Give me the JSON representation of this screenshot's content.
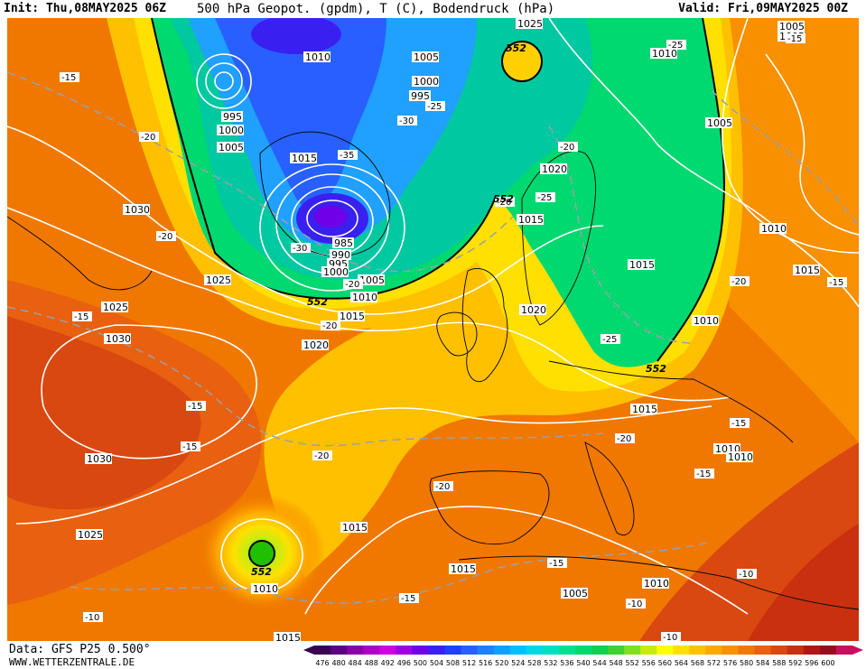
{
  "header": {
    "init": "Init: Thu,08MAY2025 06Z",
    "title": "500 hPa Geopot. (gpdm), T (C), Bodendruck (hPa)",
    "valid": "Valid: Fri,09MAY2025 00Z"
  },
  "footer": {
    "source": "Data: GFS P25 0.500°",
    "website": "WWW.WETTERZENTRALE.DE"
  },
  "colorbar": {
    "ticks": [
      "476",
      "480",
      "484",
      "488",
      "492",
      "496",
      "500",
      "504",
      "508",
      "512",
      "516",
      "520",
      "524",
      "528",
      "532",
      "536",
      "540",
      "544",
      "548",
      "552",
      "556",
      "560",
      "564",
      "568",
      "572",
      "576",
      "580",
      "584",
      "588",
      "592",
      "596",
      "600"
    ],
    "colors": [
      "#3a0050",
      "#5a0080",
      "#8a00a8",
      "#b000c8",
      "#d000e0",
      "#a000e0",
      "#7000e8",
      "#3a20f0",
      "#2040ff",
      "#2860ff",
      "#2080ff",
      "#10a0ff",
      "#00c0ff",
      "#00d8e8",
      "#00e0c0",
      "#00e090",
      "#00d870",
      "#10d050",
      "#40d030",
      "#80e020",
      "#c8ec10",
      "#ffff00",
      "#ffe000",
      "#ffc000",
      "#ffa800",
      "#f89000",
      "#f07800",
      "#e86010",
      "#d84810",
      "#c83010",
      "#b01818",
      "#980c20",
      "#c81060"
    ]
  },
  "pressure_labels": [
    {
      "t": "1025",
      "id": "p1"
    },
    {
      "t": "1005",
      "id": "p2"
    },
    {
      "t": "1010",
      "id": "p3"
    },
    {
      "t": "1005",
      "id": "p4"
    },
    {
      "t": "1000",
      "id": "p5"
    },
    {
      "t": "995",
      "id": "p6"
    },
    {
      "t": "995",
      "id": "p7"
    },
    {
      "t": "1000",
      "id": "p8"
    },
    {
      "t": "1005",
      "id": "p9"
    },
    {
      "t": "1015",
      "id": "p10"
    },
    {
      "t": "1030",
      "id": "p11"
    },
    {
      "t": "985",
      "id": "p12"
    },
    {
      "t": "990",
      "id": "p13"
    },
    {
      "t": "995",
      "id": "p14"
    },
    {
      "t": "1000",
      "id": "p15"
    },
    {
      "t": "1005",
      "id": "p16"
    },
    {
      "t": "1010",
      "id": "p17"
    },
    {
      "t": "1025",
      "id": "p18"
    },
    {
      "t": "1025",
      "id": "p19"
    },
    {
      "t": "1030",
      "id": "p20"
    },
    {
      "t": "1015",
      "id": "p21"
    },
    {
      "t": "1020",
      "id": "p22"
    },
    {
      "t": "1020",
      "id": "p23"
    },
    {
      "t": "1015",
      "id": "p24"
    },
    {
      "t": "1010",
      "id": "p25"
    },
    {
      "t": "1005",
      "id": "p26"
    },
    {
      "t": "1015",
      "id": "p27"
    },
    {
      "t": "1010",
      "id": "p28"
    },
    {
      "t": "1015",
      "id": "p29"
    },
    {
      "t": "1020",
      "id": "p30"
    },
    {
      "t": "1010",
      "id": "p31"
    },
    {
      "t": "1015",
      "id": "p32"
    },
    {
      "t": "1010",
      "id": "p33"
    },
    {
      "t": "1010",
      "id": "p34"
    },
    {
      "t": "1030",
      "id": "p35"
    },
    {
      "t": "1025",
      "id": "p36"
    },
    {
      "t": "1015",
      "id": "p37"
    },
    {
      "t": "1015",
      "id": "p38"
    },
    {
      "t": "1010",
      "id": "p39"
    },
    {
      "t": "1005",
      "id": "p40"
    },
    {
      "t": "1010",
      "id": "p41"
    },
    {
      "t": "1015",
      "id": "p42"
    },
    {
      "t": "1005",
      "id": "p43"
    }
  ],
  "temp_labels": [
    {
      "t": "-15",
      "id": "t1"
    },
    {
      "t": "-20",
      "id": "t2"
    },
    {
      "t": "-30",
      "id": "t3"
    },
    {
      "t": "-35",
      "id": "t4"
    },
    {
      "t": "-25",
      "id": "t5"
    },
    {
      "t": "-30",
      "id": "t6"
    },
    {
      "t": "-20",
      "id": "t7"
    },
    {
      "t": "-25",
      "id": "t8"
    },
    {
      "t": "-20",
      "id": "t9"
    },
    {
      "t": "-25",
      "id": "t10"
    },
    {
      "t": "-20",
      "id": "t11"
    },
    {
      "t": "-15",
      "id": "t12"
    },
    {
      "t": "-15",
      "id": "t13"
    },
    {
      "t": "-15",
      "id": "t14"
    },
    {
      "t": "-20",
      "id": "t15"
    },
    {
      "t": "-20",
      "id": "t16"
    },
    {
      "t": "-20",
      "id": "t17"
    },
    {
      "t": "-15",
      "id": "t18"
    },
    {
      "t": "-15",
      "id": "t19"
    },
    {
      "t": "-15",
      "id": "t20"
    },
    {
      "t": "-20",
      "id": "t21"
    },
    {
      "t": "-20",
      "id": "t22"
    },
    {
      "t": "-15",
      "id": "t23"
    },
    {
      "t": "-10",
      "id": "t24"
    },
    {
      "t": "-10",
      "id": "t25"
    },
    {
      "t": "-10",
      "id": "t26"
    },
    {
      "t": "-15",
      "id": "t27"
    },
    {
      "t": "-10",
      "id": "t28"
    },
    {
      "t": "-20",
      "id": "t29"
    },
    {
      "t": "-25",
      "id": "t30"
    },
    {
      "t": "-15",
      "id": "t31"
    }
  ],
  "geopot_labels": [
    {
      "t": "552",
      "id": "g1"
    },
    {
      "t": "552",
      "id": "g2"
    },
    {
      "t": "552",
      "id": "g3"
    },
    {
      "t": "552",
      "id": "g4"
    },
    {
      "t": "552",
      "id": "g5"
    }
  ]
}
